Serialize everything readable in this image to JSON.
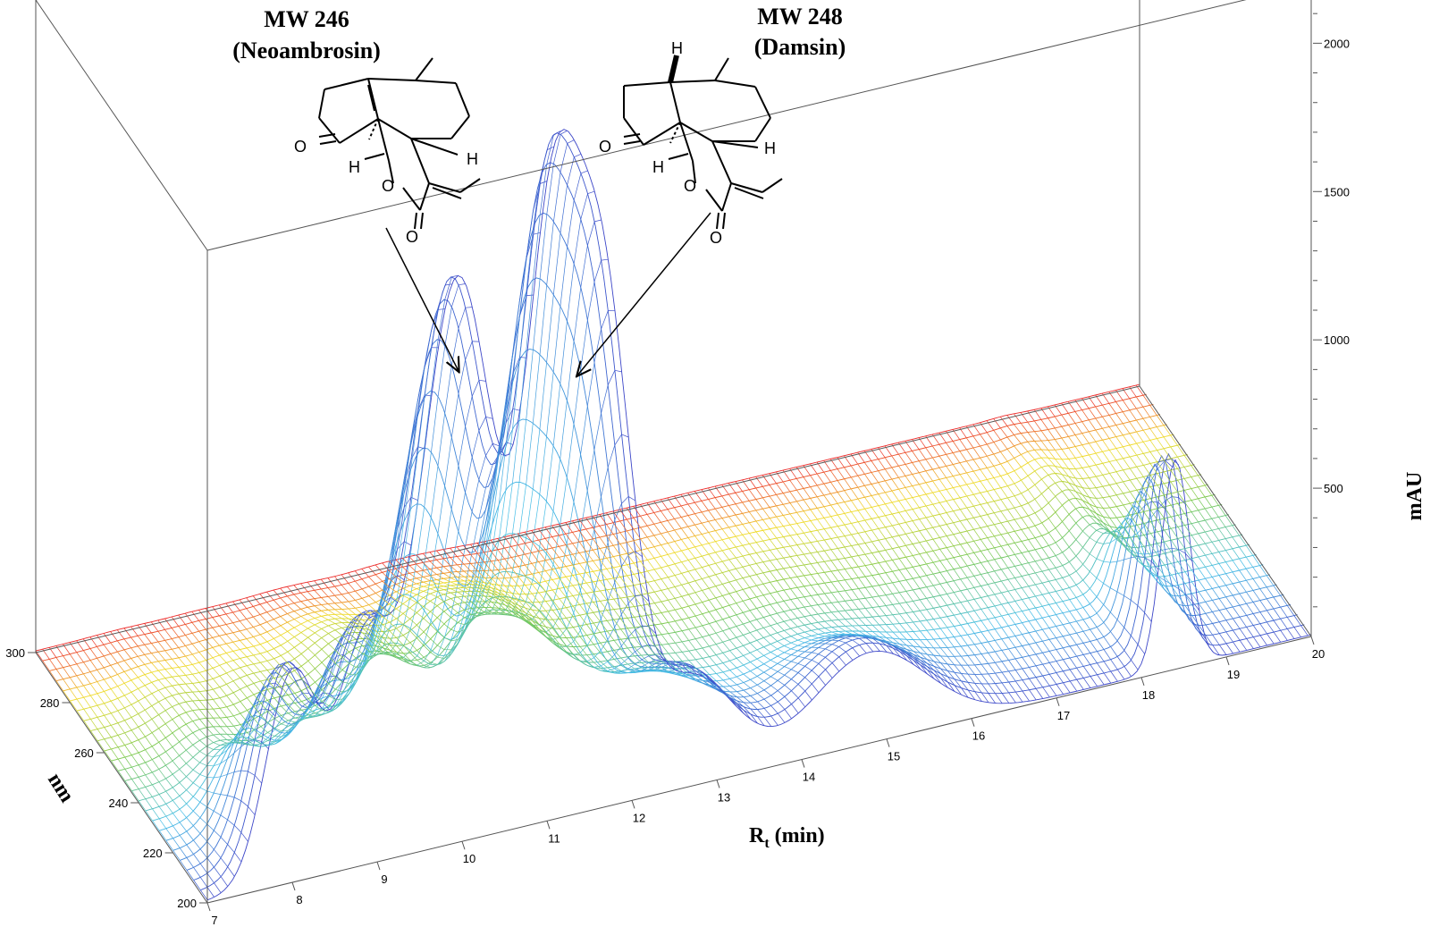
{
  "chart_data": {
    "type": "3d-wireframe-surface",
    "title": "",
    "annotations": [
      {
        "name": "MW 246",
        "compound": "(Neoambrosin)",
        "rt": 9.95,
        "wavelength": 210
      },
      {
        "name": "MW 248",
        "compound": "(Damsin)",
        "rt": 11.05,
        "wavelength": 210
      }
    ],
    "axes": {
      "x": {
        "label_main": "R",
        "label_sub": "t",
        "label_rest": " (min)",
        "range": [
          7,
          20
        ],
        "ticks": [
          "7",
          "8",
          "9",
          "10",
          "11",
          "12",
          "13",
          "14",
          "15",
          "16",
          "17",
          "18",
          "19",
          "20"
        ]
      },
      "y": {
        "label": "nm",
        "range": [
          200,
          300
        ],
        "ticks": [
          "200",
          "220",
          "240",
          "260",
          "280",
          "300"
        ]
      },
      "z": {
        "label": "mAU",
        "range": [
          0,
          2200
        ],
        "ticks": [
          "500",
          "1000",
          "1500",
          "2000"
        ]
      }
    },
    "peaks": [
      {
        "rt": 8.0,
        "height": 700,
        "width": 0.55
      },
      {
        "rt": 8.85,
        "height": 700,
        "width": 0.55
      },
      {
        "rt": 9.95,
        "height": 1900,
        "width": 0.8
      },
      {
        "rt": 11.05,
        "height": 1800,
        "width": 0.55
      },
      {
        "rt": 11.65,
        "height": 1650,
        "width": 0.6
      },
      {
        "rt": 12.7,
        "height": 360,
        "width": 0.9
      },
      {
        "rt": 14.8,
        "height": 300,
        "width": 1.2
      },
      {
        "rt": 18.4,
        "height": 700,
        "width": 0.3
      }
    ],
    "grid": false,
    "legend": "none"
  }
}
